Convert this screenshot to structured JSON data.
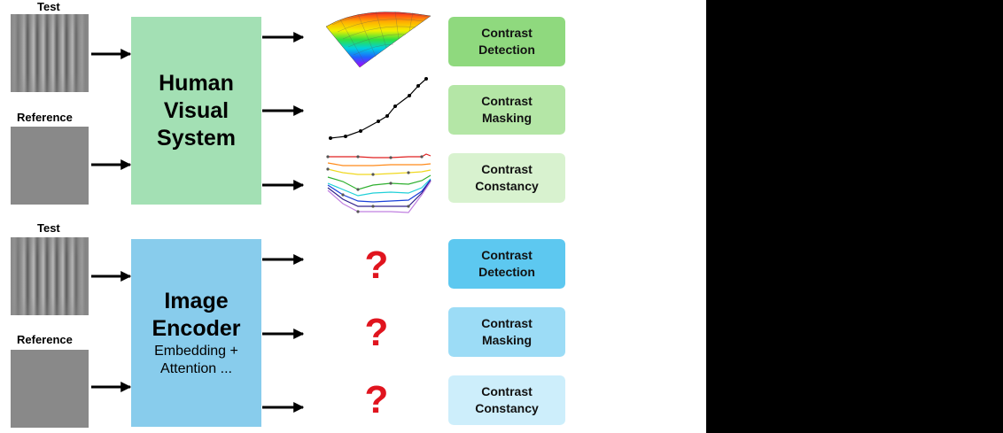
{
  "top_section": {
    "test_label": "Test",
    "reference_label": "Reference",
    "system_box": {
      "line1": "Human",
      "line2": "Visual",
      "line3": "System",
      "color": "#a3e0b4"
    },
    "outputs": [
      {
        "line1": "Contrast",
        "line2": "Detection",
        "color": "#8fd97e"
      },
      {
        "line1": "Contrast",
        "line2": "Masking",
        "color": "#b4e6a6"
      },
      {
        "line1": "Contrast",
        "line2": "Constancy",
        "color": "#d8f2cf"
      }
    ]
  },
  "bottom_section": {
    "test_label": "Test",
    "reference_label": "Reference",
    "system_box": {
      "line1": "Image",
      "line2": "Encoder",
      "sub1": "Embedding +",
      "sub2": "Attention ...",
      "color": "#88ccec"
    },
    "unknown_symbol": "?",
    "outputs": [
      {
        "line1": "Contrast",
        "line2": "Detection",
        "color": "#5dc8f0"
      },
      {
        "line1": "Contrast",
        "line2": "Masking",
        "color": "#9cdcf6"
      },
      {
        "line1": "Contrast",
        "line2": "Constancy",
        "color": "#cdeefb"
      }
    ]
  }
}
